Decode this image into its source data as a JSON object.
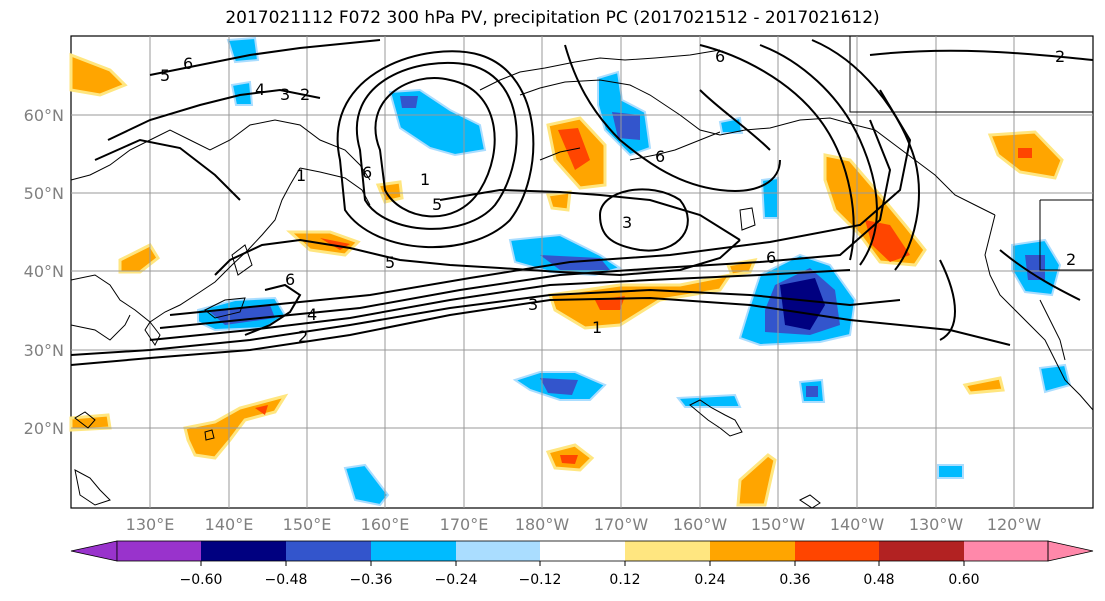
{
  "title": "2017021112 F072 300 hPa PV, precipitation PC (2017021512 - 2017021612)",
  "lat_labels": [
    "60°N",
    "50°N",
    "40°N",
    "30°N",
    "20°N"
  ],
  "lon_labels": [
    "130°E",
    "140°E",
    "150°E",
    "160°E",
    "170°E",
    "180°W",
    "170°W",
    "160°W",
    "150°W",
    "140°W",
    "130°W",
    "120°W"
  ],
  "contour_labels": [
    "1",
    "2",
    "3",
    "4",
    "5",
    "6"
  ],
  "colorbar": {
    "ticks": [
      "−0.60",
      "−0.48",
      "−0.36",
      "−0.24",
      "−0.12",
      "0.12",
      "0.24",
      "0.36",
      "0.48",
      "0.60"
    ],
    "colors": [
      "#9933cc",
      "#000080",
      "#3355cc",
      "#00bbff",
      "#aaddff",
      "#ffffff",
      "#ffe680",
      "#ffa500",
      "#ff4500",
      "#b22222",
      "#ff88aa"
    ]
  },
  "map_colors": {
    "blue_light": "#00bbff",
    "blue_mid": "#3355cc",
    "orange": "#ffa500",
    "yellow": "#ffe680",
    "red": "#ff4500"
  }
}
